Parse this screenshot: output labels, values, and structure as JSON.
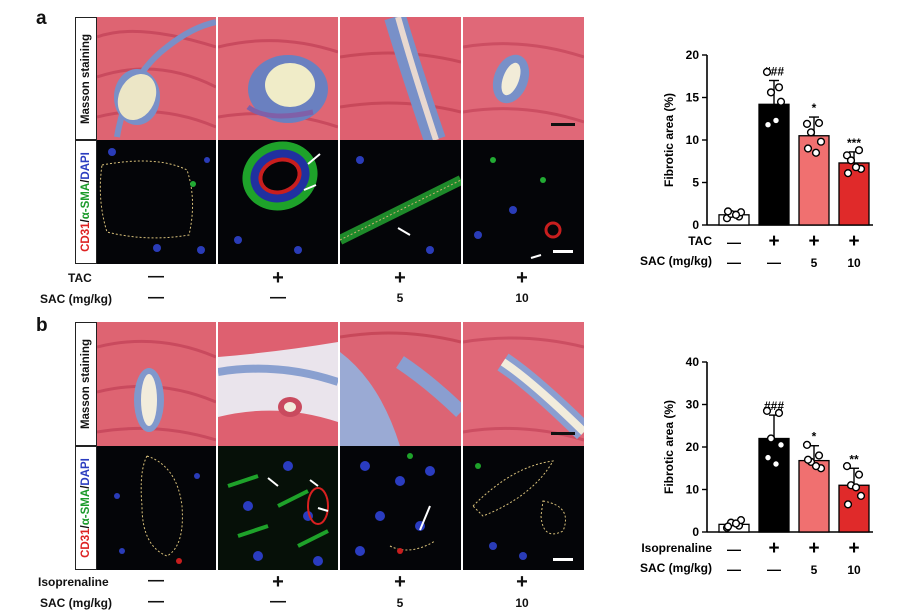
{
  "panel_labels": [
    "a",
    "b"
  ],
  "row_labels": {
    "masson": "Masson staining",
    "cd31_part": "CD31",
    "slash1": "/",
    "sma_part": "α-SMA",
    "slash2": "/",
    "dapi_part": "DAPI"
  },
  "colors": {
    "masson_bg": "#dd6070",
    "fluor_bg": "#050608",
    "cd31": "#e22020",
    "sma": "#22bb33",
    "dapi": "#3a4cc8",
    "bar_control": "#ffffff",
    "bar_black": "#000000",
    "bar_sac5": "#f07070",
    "bar_sac10": "#e02a2a"
  },
  "panel_a": {
    "treat1_label": "TAC",
    "treat2_label": "SAC (mg/kg)",
    "treat1_values": [
      "—",
      "+",
      "+",
      "+"
    ],
    "treat2_values": [
      "—",
      "—",
      "5",
      "10"
    ]
  },
  "panel_b": {
    "treat1_label": "Isoprenaline",
    "treat2_label": "SAC (mg/kg)",
    "treat1_values": [
      "—",
      "+",
      "+",
      "+"
    ],
    "treat2_values": [
      "—",
      "—",
      "5",
      "10"
    ]
  },
  "chart_data": [
    {
      "type": "bar",
      "ylabel": "Fibrotic area (%)",
      "ylim": [
        0,
        20
      ],
      "yticks": [
        "0",
        "5",
        "10",
        "15",
        "20"
      ],
      "grid": false,
      "values": [
        1.2,
        14.2,
        10.5,
        7.3
      ],
      "errors": [
        0.4,
        2.8,
        2.2,
        1.3
      ],
      "significance": [
        "",
        "###",
        "*",
        "***"
      ],
      "points": [
        [
          0.8,
          1.0,
          1.3,
          1.5,
          1.6,
          1.2
        ],
        [
          18.0,
          16.2,
          15.6,
          14.5,
          11.8,
          12.3
        ],
        [
          11.9,
          12.0,
          10.9,
          9.8,
          9.0,
          8.5
        ],
        [
          8.2,
          8.8,
          7.6,
          6.6,
          6.1,
          6.8
        ]
      ],
      "treat1_label": "TAC",
      "treat2_label": "SAC (mg/kg)",
      "treat1_values": [
        "—",
        "+",
        "+",
        "+"
      ],
      "treat2_values": [
        "—",
        "—",
        "5",
        "10"
      ]
    },
    {
      "type": "bar",
      "ylabel": "Fibrotic area (%)",
      "ylim": [
        0,
        40
      ],
      "yticks": [
        "0",
        "10",
        "20",
        "30",
        "40"
      ],
      "grid": false,
      "values": [
        1.8,
        22.0,
        16.8,
        11.0
      ],
      "errors": [
        0.7,
        5.5,
        3.5,
        4.0
      ],
      "significance": [
        "",
        "###",
        "*",
        "**"
      ],
      "points": [
        [
          1.0,
          1.5,
          2.2,
          2.8,
          1.3,
          2.0
        ],
        [
          28.5,
          28.0,
          22.0,
          20.5,
          17.5,
          16.0
        ],
        [
          20.5,
          18.0,
          16.5,
          15.0,
          17.0,
          15.5
        ],
        [
          15.5,
          13.5,
          11.0,
          8.5,
          6.5,
          10.5
        ]
      ],
      "treat1_label": "Isoprenaline",
      "treat2_label": "SAC (mg/kg)",
      "treat1_values": [
        "—",
        "+",
        "+",
        "+"
      ],
      "treat2_values": [
        "—",
        "—",
        "5",
        "10"
      ]
    }
  ]
}
